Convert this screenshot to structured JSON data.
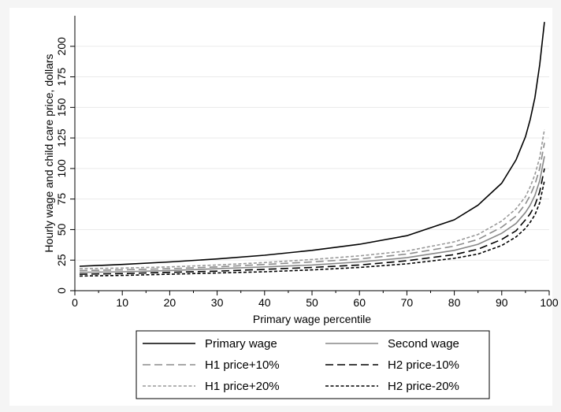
{
  "chart_data": {
    "type": "line",
    "xlabel": "Primary wage percentile",
    "ylabel": "Hourly wage and child care price, dollars",
    "xlim": [
      0,
      100
    ],
    "ylim": [
      0,
      225
    ],
    "x_ticks": [
      0,
      10,
      20,
      30,
      40,
      50,
      60,
      70,
      80,
      90,
      100
    ],
    "y_ticks": [
      0,
      25,
      50,
      75,
      100,
      125,
      150,
      175,
      200
    ],
    "grid": "horizontal",
    "legend_position": "bottom",
    "x": [
      1,
      10,
      20,
      30,
      40,
      50,
      60,
      70,
      80,
      85,
      90,
      93,
      95,
      96,
      97,
      98,
      99
    ],
    "series": [
      {
        "name": "Primary wage",
        "color": "#000000",
        "dash": "solid",
        "values": [
          20,
          21.5,
          23.5,
          26,
          29,
          33,
          38,
          45,
          58,
          70,
          88,
          107,
          126,
          140,
          158,
          185,
          220
        ]
      },
      {
        "name": "Second wage",
        "color": "#888888",
        "dash": "solid",
        "values": [
          15,
          15.5,
          16.5,
          18,
          19.5,
          21,
          23.5,
          27,
          33,
          38,
          47,
          55,
          64,
          70,
          78,
          90,
          110
        ]
      },
      {
        "name": "H1 price+10%",
        "color": "#8c8c8c",
        "dash": "long",
        "values": [
          16.5,
          17,
          18,
          19.5,
          21.5,
          23.5,
          26,
          30,
          36.5,
          42,
          52,
          61,
          71,
          78,
          87,
          100,
          121
        ]
      },
      {
        "name": "H2 price-10%",
        "color": "#000000",
        "dash": "long",
        "values": [
          13.5,
          14,
          15,
          16,
          17.5,
          19,
          21,
          24.5,
          29.5,
          34,
          42,
          49,
          58,
          63,
          70,
          81,
          100
        ]
      },
      {
        "name": "H1 price+20%",
        "color": "#999999",
        "dash": "short",
        "values": [
          18,
          18.5,
          19.5,
          21,
          23,
          25.5,
          28.5,
          32.5,
          40,
          46,
          57,
          67,
          77,
          85,
          95,
          109,
          132
        ]
      },
      {
        "name": "H2 price-20%",
        "color": "#000000",
        "dash": "short",
        "values": [
          12,
          12.5,
          13.5,
          14.5,
          15.5,
          17,
          19,
          22,
          26.5,
          30,
          37,
          44,
          51,
          56,
          62,
          72,
          90
        ]
      }
    ]
  }
}
